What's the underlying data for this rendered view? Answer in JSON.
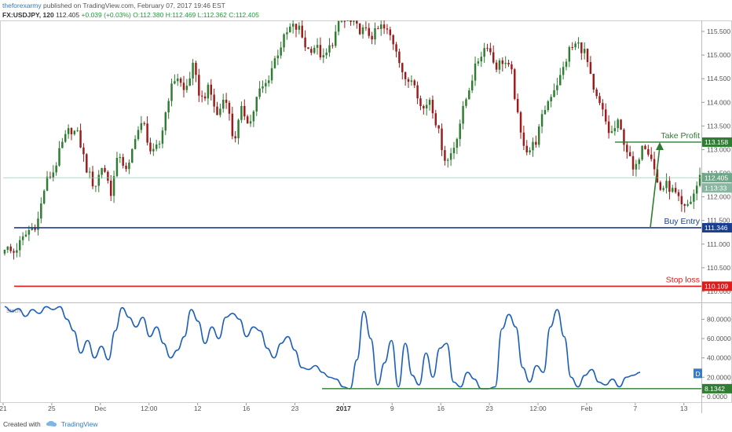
{
  "header": {
    "author": "theforexarmy",
    "published_text": "published on TradingView.com, February 07, 2017 19:46 EST",
    "symbol": "FX:USDJPY, 120",
    "last": "112.405",
    "change": "+0.039 (+0.03%)",
    "ohlc": {
      "o": "O:112.380",
      "h": "H:112.469",
      "l": "L:112.362",
      "c": "C:112.405"
    }
  },
  "footer": {
    "created_with": "Created with",
    "brand": "TradingView"
  },
  "colors": {
    "up": "#2e7d32",
    "down": "#9c1c1c",
    "buy": "#1a3f8f",
    "stop": "#e01b1b",
    "tp": "#2e7d32",
    "stoch": "#1c5fb8",
    "grid": "#e6e6e6",
    "last": "#6ea88a"
  },
  "chart_data": [
    {
      "type": "candlestick",
      "title": "",
      "symbol": "USDJPY",
      "timeframe": "120",
      "ylim": [
        109.8,
        115.7
      ],
      "y_ticks": [
        "115.500",
        "115.000",
        "114.500",
        "114.000",
        "113.500",
        "113.000",
        "112.500",
        "112.000",
        "111.500",
        "111.000",
        "110.500",
        "110.000"
      ],
      "x_ticks": [
        "21",
        "25",
        "Dec",
        "12:00",
        "12",
        "16",
        "23",
        "2017",
        "9",
        "16",
        "23",
        "12:00",
        "Feb",
        "7",
        "13"
      ],
      "close_path": [
        110.95,
        110.8,
        111.05,
        111.3,
        111.45,
        112.3,
        112.55,
        113.1,
        113.45,
        113.3,
        112.6,
        112.2,
        112.7,
        112.1,
        112.95,
        112.45,
        113.35,
        113.55,
        112.85,
        113.15,
        114.1,
        114.6,
        114.2,
        114.75,
        114.05,
        114.3,
        113.7,
        114.2,
        113.15,
        113.85,
        113.55,
        114.2,
        114.4,
        114.9,
        115.3,
        115.6,
        115.55,
        115.1,
        115.2,
        114.9,
        115.25,
        115.7,
        115.72,
        115.58,
        115.5,
        115.4,
        115.6,
        115.45,
        115.1,
        114.4,
        114.55,
        113.8,
        114.1,
        113.4,
        112.7,
        113.1,
        113.8,
        114.45,
        114.95,
        115.25,
        114.75,
        114.9,
        114.6,
        113.35,
        112.95,
        113.2,
        113.85,
        114.25,
        114.55,
        115.1,
        115.25,
        115.05,
        114.2,
        113.85,
        113.3,
        113.55,
        113.05,
        112.45,
        113.2,
        112.9,
        112.15,
        112.25,
        112.05,
        111.7,
        111.95,
        112.41
      ],
      "levels": [
        {
          "label": "Take Profit",
          "value": 113.158,
          "value_label": "113.158"
        },
        {
          "label": "Buy Entry",
          "value": 111.346,
          "value_label": "111.346"
        },
        {
          "label": "Stop loss",
          "value": 110.109,
          "value_label": "110.109"
        }
      ],
      "last_price": {
        "value": 112.405,
        "label": "112.405",
        "countdown": "1:13:33"
      },
      "projection_arrow": {
        "from": 111.346,
        "to": 113.158
      }
    },
    {
      "type": "line",
      "title": "Stoch",
      "ylim": [
        -5,
        95
      ],
      "y_ticks": [
        "80.0000",
        "60.0000",
        "40.0000",
        "20.0000",
        "0.0000"
      ],
      "last_value": "8.1342",
      "marker": "D",
      "support_level": 8.1342,
      "series": [
        {
          "values": [
            93,
            88,
            91,
            83,
            90,
            86,
            93,
            90,
            93,
            80,
            68,
            45,
            58,
            40,
            52,
            38,
            68,
            92,
            82,
            72,
            82,
            62,
            72,
            55,
            40,
            48,
            62,
            90,
            78,
            55,
            72,
            60,
            82,
            86,
            80,
            62,
            72,
            68,
            50,
            40,
            55,
            62,
            48,
            30,
            28,
            32,
            25,
            20,
            18,
            10,
            8,
            38,
            88,
            60,
            12,
            35,
            58,
            10,
            55,
            22,
            12,
            45,
            20,
            50,
            55,
            15,
            10,
            25,
            18,
            8,
            8,
            10,
            70,
            85,
            72,
            30,
            15,
            32,
            25,
            72,
            90,
            62,
            20,
            10,
            22,
            28,
            15,
            12,
            18,
            10,
            20,
            22,
            25
          ]
        }
      ]
    }
  ]
}
